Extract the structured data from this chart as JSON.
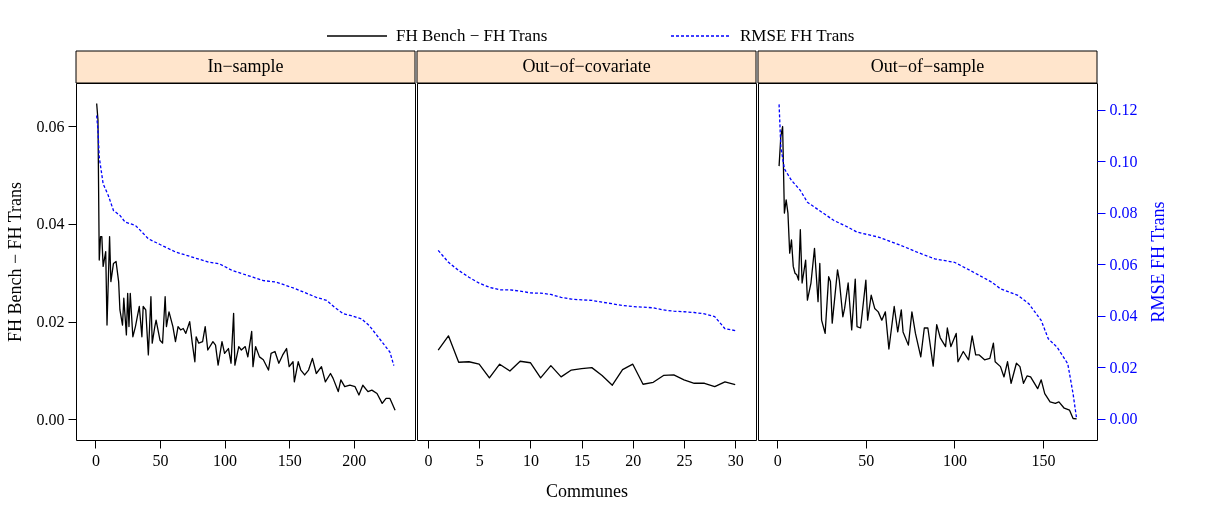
{
  "chart_data": [
    {
      "type": "line",
      "title": "In−sample",
      "ylabel": "FH Bench − FH Trans",
      "legend": "top",
      "tick_labels": [
        "x",
        "y"
      ],
      "xlim": [
        -15,
        247.4
      ],
      "xticks": [
        0,
        50,
        100,
        150,
        200
      ],
      "ylim": [
        -0.0042,
        0.0688
      ],
      "yticks": [
        {
          "value": 0,
          "label": "0.00"
        },
        0.02,
        0.04,
        0.06
      ],
      "y2lim": [
        -0.0082,
        0.1304
      ],
      "series": [
        {
          "name": "FH Bench − FH Trans",
          "color": "#000000",
          "line_style": "solid",
          "x": [
            1,
            2,
            3,
            4,
            5,
            6,
            8,
            9,
            11,
            12,
            14,
            16,
            18,
            19,
            21,
            22,
            24,
            25,
            26,
            27,
            29,
            31,
            34,
            36,
            37,
            39,
            41,
            43,
            44,
            46,
            47,
            50,
            52,
            54,
            55,
            57,
            60,
            62,
            64,
            66,
            68,
            70,
            73,
            75,
            77,
            78,
            80,
            83,
            85,
            87,
            91,
            93,
            95,
            98,
            100,
            103,
            105,
            107,
            108,
            111,
            113,
            116,
            118,
            121,
            122,
            124,
            127,
            130,
            134,
            136,
            139,
            142,
            145,
            148,
            150,
            153,
            154,
            157,
            159,
            162,
            165,
            168,
            171,
            175,
            178,
            182,
            184,
            188,
            190,
            193,
            197,
            201,
            204,
            207,
            211,
            214,
            218,
            222,
            225,
            228,
            232
          ],
          "values": [
            0.0646,
            0.0613,
            0.0326,
            0.0374,
            0.0374,
            0.0313,
            0.0343,
            0.0193,
            0.0374,
            0.0282,
            0.0319,
            0.0323,
            0.0282,
            0.0224,
            0.0193,
            0.0248,
            0.0173,
            0.0258,
            0.019,
            0.0258,
            0.0169,
            0.019,
            0.0231,
            0.0169,
            0.0231,
            0.0224,
            0.0132,
            0.0251,
            0.0156,
            0.019,
            0.0203,
            0.0162,
            0.0156,
            0.0251,
            0.019,
            0.022,
            0.019,
            0.0159,
            0.019,
            0.0183,
            0.0186,
            0.0176,
            0.02,
            0.0156,
            0.0118,
            0.0169,
            0.0156,
            0.0159,
            0.019,
            0.0142,
            0.0159,
            0.0152,
            0.0111,
            0.0159,
            0.0135,
            0.0145,
            0.0115,
            0.0217,
            0.0111,
            0.0149,
            0.0142,
            0.0149,
            0.0128,
            0.018,
            0.0108,
            0.0149,
            0.0128,
            0.0122,
            0.0101,
            0.0135,
            0.0139,
            0.0115,
            0.0132,
            0.0145,
            0.0108,
            0.0118,
            0.0077,
            0.0118,
            0.0101,
            0.0091,
            0.0101,
            0.0125,
            0.0094,
            0.0108,
            0.0077,
            0.0094,
            0.0084,
            0.0057,
            0.0081,
            0.0067,
            0.007,
            0.0067,
            0.005,
            0.007,
            0.0057,
            0.006,
            0.0053,
            0.0033,
            0.0043,
            0.0043,
            0.0019
          ]
        },
        {
          "name": "RMSE FH Trans",
          "color": "#0000ff",
          "line_style": "dashed",
          "axis": "y2",
          "x": [
            1,
            2,
            3,
            6,
            10,
            14,
            19,
            23,
            31,
            35,
            41,
            50,
            62,
            75,
            88,
            96,
            106,
            122,
            130,
            140,
            155,
            171,
            179,
            185,
            192,
            198,
            206,
            212,
            217,
            222,
            228,
            231
          ],
          "values": [
            0.1178,
            0.112,
            0.1016,
            0.0913,
            0.0867,
            0.0809,
            0.079,
            0.0764,
            0.0751,
            0.0731,
            0.0699,
            0.0677,
            0.0648,
            0.0628,
            0.0608,
            0.0602,
            0.0576,
            0.055,
            0.0537,
            0.0531,
            0.0505,
            0.0472,
            0.046,
            0.0434,
            0.0408,
            0.0401,
            0.0388,
            0.0362,
            0.033,
            0.0298,
            0.0259,
            0.0207
          ]
        }
      ]
    },
    {
      "type": "line",
      "title": "Out−of−covariate",
      "xlabel": "Communes",
      "tick_labels": "x",
      "xlim": [
        -1.07,
        32.03
      ],
      "xticks": [
        0,
        5,
        10,
        15,
        20,
        25,
        30
      ],
      "ylim": [
        -0.0042,
        0.0688
      ],
      "y2lim": [
        -0.0082,
        0.1304
      ],
      "x": [
        1,
        2,
        3,
        4,
        5,
        6,
        7,
        8,
        9,
        10,
        11,
        12,
        13,
        14,
        15,
        16,
        17,
        18,
        19,
        20,
        21,
        22,
        23,
        24,
        25,
        26,
        27,
        28,
        29,
        30
      ],
      "series": [
        {
          "color": "#000000",
          "line_style": "solid",
          "values": [
            0.0142,
            0.0171,
            0.0117,
            0.0118,
            0.0113,
            0.0085,
            0.0113,
            0.0099,
            0.0119,
            0.0116,
            0.0085,
            0.011,
            0.0087,
            0.0101,
            0.0104,
            0.0106,
            0.009,
            0.007,
            0.0102,
            0.0113,
            0.0072,
            0.0076,
            0.009,
            0.0091,
            0.0081,
            0.0074,
            0.0074,
            0.0067,
            0.0077,
            0.0071
          ]
        },
        {
          "color": "#0000ff",
          "line_style": "dashed",
          "axis": "y2",
          "values": [
            0.0654,
            0.0608,
            0.0576,
            0.055,
            0.0527,
            0.0511,
            0.0501,
            0.0501,
            0.0496,
            0.0489,
            0.0488,
            0.0483,
            0.0472,
            0.0465,
            0.0462,
            0.046,
            0.0453,
            0.0447,
            0.044,
            0.0436,
            0.0434,
            0.0431,
            0.0423,
            0.0418,
            0.0416,
            0.0413,
            0.0408,
            0.0397,
            0.035,
            0.0343
          ]
        }
      ]
    },
    {
      "type": "line",
      "title": "Out−of−sample",
      "y2label": "RMSE FH Trans",
      "tick_labels": [
        "x",
        "y2"
      ],
      "xlim": [
        -10.9,
        180.5
      ],
      "xticks": [
        0,
        50,
        100,
        150
      ],
      "ylim": [
        -0.0042,
        0.0688
      ],
      "y2lim": [
        -0.0082,
        0.1304
      ],
      "y2ticks": [
        {
          "value": 0,
          "label": "0.00"
        },
        0.02,
        0.04,
        0.06,
        0.08,
        {
          "value": 0.1,
          "label": "0.10"
        },
        0.12
      ],
      "series": [
        {
          "color": "#000000",
          "line_style": "solid",
          "x": [
            1,
            2,
            3,
            4,
            5,
            6,
            7,
            8,
            9,
            10,
            11,
            12,
            13,
            14,
            16,
            17,
            19,
            21,
            23,
            24,
            25,
            27,
            29,
            30,
            31,
            34,
            35,
            37,
            38,
            40,
            42,
            44,
            45,
            47,
            50,
            51,
            53,
            55,
            57,
            59,
            61,
            63,
            66,
            68,
            70,
            71,
            74,
            76,
            78,
            81,
            83,
            85,
            88,
            90,
            92,
            95,
            96,
            98,
            101,
            102,
            105,
            108,
            110,
            112,
            114,
            117,
            120,
            122,
            123,
            126,
            128,
            130,
            132,
            135,
            137,
            139,
            141,
            143,
            147,
            149,
            151,
            154,
            157,
            159,
            162,
            165,
            167,
            169
          ],
          "values": [
            0.0518,
            0.0579,
            0.0599,
            0.0422,
            0.0449,
            0.0422,
            0.034,
            0.0367,
            0.0313,
            0.0299,
            0.0296,
            0.0285,
            0.0388,
            0.0279,
            0.0326,
            0.0244,
            0.0279,
            0.035,
            0.0241,
            0.0319,
            0.0203,
            0.0176,
            0.0292,
            0.0282,
            0.0197,
            0.0306,
            0.0285,
            0.021,
            0.0227,
            0.0279,
            0.0183,
            0.0287,
            0.019,
            0.0187,
            0.0285,
            0.0203,
            0.0254,
            0.0227,
            0.022,
            0.0203,
            0.022,
            0.0144,
            0.0231,
            0.0179,
            0.0224,
            0.0179,
            0.0152,
            0.022,
            0.0176,
            0.0128,
            0.0187,
            0.0187,
            0.0109,
            0.0194,
            0.0167,
            0.0149,
            0.0187,
            0.0149,
            0.0176,
            0.0118,
            0.0139,
            0.0122,
            0.0171,
            0.0132,
            0.0132,
            0.0122,
            0.0125,
            0.0156,
            0.0118,
            0.0108,
            0.0087,
            0.0118,
            0.0074,
            0.0115,
            0.0108,
            0.0074,
            0.0089,
            0.0087,
            0.0063,
            0.0081,
            0.0053,
            0.0036,
            0.0033,
            0.0036,
            0.0023,
            0.0019,
            0.0002,
            0.0001
          ]
        },
        {
          "color": "#0000ff",
          "line_style": "dashed",
          "axis": "y2",
          "x": [
            1,
            2,
            4,
            8,
            13,
            17,
            21,
            32,
            40,
            45,
            57,
            70,
            79,
            89,
            100,
            109,
            121,
            126,
            136,
            142,
            149,
            153,
            158,
            164,
            167,
            169
          ],
          "values": [
            0.1221,
            0.1055,
            0.0971,
            0.0926,
            0.0887,
            0.0841,
            0.0822,
            0.077,
            0.0744,
            0.0725,
            0.0706,
            0.0673,
            0.0647,
            0.0621,
            0.0608,
            0.0576,
            0.0531,
            0.0505,
            0.0479,
            0.0447,
            0.0382,
            0.0311,
            0.0278,
            0.0214,
            0.0097,
            0
          ]
        }
      ]
    }
  ]
}
